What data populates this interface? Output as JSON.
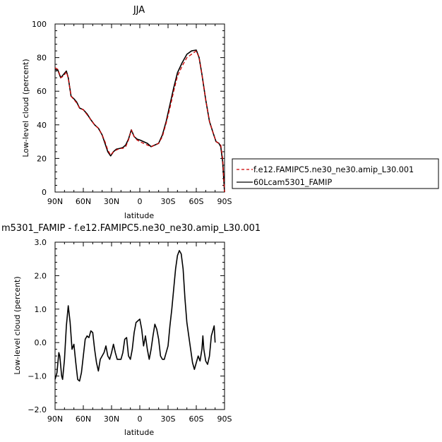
{
  "chart_data": [
    {
      "type": "line",
      "title": "JJA",
      "xlabel": "latitude",
      "ylabel": "Low-level cloud (percent)",
      "xlim": [
        90,
        -90
      ],
      "ylim": [
        0,
        100
      ],
      "xticks": [
        90,
        60,
        30,
        0,
        -30,
        -60,
        -90
      ],
      "xtick_labels": [
        "90N",
        "60N",
        "30N",
        "0",
        "30S",
        "60S",
        "90S"
      ],
      "yticks": [
        0,
        20,
        40,
        60,
        80,
        100
      ],
      "ytick_labels": [
        "0",
        "20",
        "40",
        "60",
        "80",
        "100"
      ],
      "legend_position": "lower-right-outside",
      "series": [
        {
          "name": "f.e12.FAMIPC5.ne30_ne30.amip_L30.001",
          "color": "#cc0000",
          "dash": "dashed",
          "points": [
            [
              90,
              74
            ],
            [
              87,
              73
            ],
            [
              84,
              68
            ],
            [
              81,
              69
            ],
            [
              78,
              71.5
            ],
            [
              76,
              68
            ],
            [
              73,
              57
            ],
            [
              70,
              55
            ],
            [
              67,
              53
            ],
            [
              64,
              50
            ],
            [
              60,
              49
            ],
            [
              56,
              46
            ],
            [
              52,
              43
            ],
            [
              48,
              40
            ],
            [
              44,
              38
            ],
            [
              40,
              34
            ],
            [
              37,
              30
            ],
            [
              34,
              25
            ],
            [
              31,
              22
            ],
            [
              28,
              24
            ],
            [
              25,
              25
            ],
            [
              21,
              26
            ],
            [
              18,
              26
            ],
            [
              15,
              27
            ],
            [
              12,
              31
            ],
            [
              9,
              37
            ],
            [
              6,
              33
            ],
            [
              3,
              31
            ],
            [
              0,
              30
            ],
            [
              -4,
              29
            ],
            [
              -8,
              28
            ],
            [
              -12,
              27
            ],
            [
              -16,
              28
            ],
            [
              -20,
              29
            ],
            [
              -24,
              33
            ],
            [
              -28,
              41
            ],
            [
              -32,
              50
            ],
            [
              -36,
              60
            ],
            [
              -40,
              69
            ],
            [
              -45,
              75
            ],
            [
              -50,
              80
            ],
            [
              -55,
              82
            ],
            [
              -60,
              84
            ],
            [
              -63,
              80
            ],
            [
              -66,
              70
            ],
            [
              -70,
              55
            ],
            [
              -74,
              42
            ],
            [
              -78,
              35
            ],
            [
              -81,
              30
            ],
            [
              -84,
              29
            ],
            [
              -86,
              28
            ],
            [
              -88,
              20
            ],
            [
              -90,
              0
            ]
          ]
        },
        {
          "name": "60Lcam5301_FAMIP",
          "color": "#000000",
          "dash": "solid",
          "points": [
            [
              90,
              73
            ],
            [
              87,
              72.5
            ],
            [
              84,
              68
            ],
            [
              81,
              70
            ],
            [
              78,
              72
            ],
            [
              76,
              68
            ],
            [
              73,
              57
            ],
            [
              70,
              55.5
            ],
            [
              67,
              53.5
            ],
            [
              64,
              50
            ],
            [
              60,
              49
            ],
            [
              56,
              46.5
            ],
            [
              52,
              43
            ],
            [
              48,
              40
            ],
            [
              44,
              38
            ],
            [
              40,
              34
            ],
            [
              37,
              29
            ],
            [
              34,
              24
            ],
            [
              31,
              21.5
            ],
            [
              28,
              24
            ],
            [
              25,
              25.5
            ],
            [
              21,
              26
            ],
            [
              18,
              26.5
            ],
            [
              15,
              28
            ],
            [
              12,
              31.5
            ],
            [
              9,
              37
            ],
            [
              6,
              33
            ],
            [
              3,
              31.5
            ],
            [
              0,
              31
            ],
            [
              -4,
              30
            ],
            [
              -8,
              29
            ],
            [
              -12,
              27
            ],
            [
              -16,
              28
            ],
            [
              -20,
              29
            ],
            [
              -24,
              34
            ],
            [
              -28,
              42
            ],
            [
              -32,
              52
            ],
            [
              -36,
              62
            ],
            [
              -40,
              71
            ],
            [
              -45,
              77
            ],
            [
              -50,
              82
            ],
            [
              -55,
              84
            ],
            [
              -60,
              84.5
            ],
            [
              -63,
              80
            ],
            [
              -66,
              70
            ],
            [
              -70,
              55
            ],
            [
              -74,
              42
            ],
            [
              -78,
              35
            ],
            [
              -81,
              30
            ],
            [
              -84,
              29
            ],
            [
              -86,
              27
            ],
            [
              -88,
              18
            ],
            [
              -90,
              0
            ]
          ]
        }
      ]
    },
    {
      "type": "line",
      "title": "m5301_FAMIP - f.e12.FAMIPC5.ne30_ne30.amip_L30.001",
      "xlabel": "latitude",
      "ylabel": "Low-level cloud (percent)",
      "xlim": [
        90,
        -90
      ],
      "ylim": [
        -2,
        3
      ],
      "xticks": [
        90,
        60,
        30,
        0,
        -30,
        -60,
        -90
      ],
      "xtick_labels": [
        "90N",
        "60N",
        "30N",
        "0",
        "30S",
        "60S",
        "90S"
      ],
      "yticks": [
        -2,
        -1,
        0,
        1,
        2,
        3
      ],
      "ytick_labels": [
        "−2.0",
        "−1.0",
        "0.0",
        "1.0",
        "2.0",
        "3.0"
      ],
      "series": [
        {
          "color": "#000000",
          "dash": "solid",
          "points": [
            [
              90,
              -1.1
            ],
            [
              88,
              -0.9
            ],
            [
              86,
              -0.3
            ],
            [
              85,
              -0.4
            ],
            [
              83,
              -1.0
            ],
            [
              82,
              -1.1
            ],
            [
              80,
              -0.5
            ],
            [
              78,
              0.5
            ],
            [
              76,
              1.1
            ],
            [
              74,
              0.6
            ],
            [
              72,
              -0.2
            ],
            [
              70,
              -0.05
            ],
            [
              68,
              -0.6
            ],
            [
              66,
              -1.1
            ],
            [
              64,
              -1.15
            ],
            [
              62,
              -0.9
            ],
            [
              60,
              -0.4
            ],
            [
              58,
              0.1
            ],
            [
              56,
              0.2
            ],
            [
              54,
              0.15
            ],
            [
              52,
              0.35
            ],
            [
              50,
              0.3
            ],
            [
              48,
              -0.2
            ],
            [
              46,
              -0.6
            ],
            [
              44,
              -0.85
            ],
            [
              42,
              -0.5
            ],
            [
              40,
              -0.4
            ],
            [
              38,
              -0.3
            ],
            [
              36,
              -0.1
            ],
            [
              34,
              -0.4
            ],
            [
              32,
              -0.5
            ],
            [
              30,
              -0.3
            ],
            [
              28,
              -0.05
            ],
            [
              26,
              -0.3
            ],
            [
              24,
              -0.5
            ],
            [
              22,
              -0.5
            ],
            [
              20,
              -0.5
            ],
            [
              18,
              -0.3
            ],
            [
              16,
              0.1
            ],
            [
              14,
              0.15
            ],
            [
              12,
              -0.4
            ],
            [
              10,
              -0.5
            ],
            [
              8,
              -0.2
            ],
            [
              6,
              0.3
            ],
            [
              4,
              0.6
            ],
            [
              2,
              0.65
            ],
            [
              0,
              0.7
            ],
            [
              -2,
              0.4
            ],
            [
              -4,
              -0.1
            ],
            [
              -6,
              0.2
            ],
            [
              -8,
              -0.2
            ],
            [
              -10,
              -0.5
            ],
            [
              -12,
              -0.2
            ],
            [
              -14,
              0.2
            ],
            [
              -16,
              0.55
            ],
            [
              -18,
              0.4
            ],
            [
              -20,
              0.1
            ],
            [
              -22,
              -0.4
            ],
            [
              -24,
              -0.5
            ],
            [
              -26,
              -0.5
            ],
            [
              -28,
              -0.3
            ],
            [
              -30,
              -0.1
            ],
            [
              -32,
              0.5
            ],
            [
              -34,
              1.0
            ],
            [
              -36,
              1.6
            ],
            [
              -38,
              2.2
            ],
            [
              -40,
              2.6
            ],
            [
              -42,
              2.75
            ],
            [
              -44,
              2.65
            ],
            [
              -46,
              2.2
            ],
            [
              -48,
              1.3
            ],
            [
              -50,
              0.6
            ],
            [
              -52,
              0.2
            ],
            [
              -54,
              -0.2
            ],
            [
              -56,
              -0.6
            ],
            [
              -58,
              -0.8
            ],
            [
              -60,
              -0.6
            ],
            [
              -62,
              -0.4
            ],
            [
              -64,
              -0.55
            ],
            [
              -66,
              -0.2
            ],
            [
              -67,
              0.2
            ],
            [
              -68,
              -0.2
            ],
            [
              -70,
              -0.55
            ],
            [
              -72,
              -0.65
            ],
            [
              -74,
              -0.4
            ],
            [
              -76,
              0.2
            ],
            [
              -78,
              0.4
            ],
            [
              -79,
              0.5
            ],
            [
              -80,
              0.0
            ]
          ]
        }
      ]
    }
  ]
}
